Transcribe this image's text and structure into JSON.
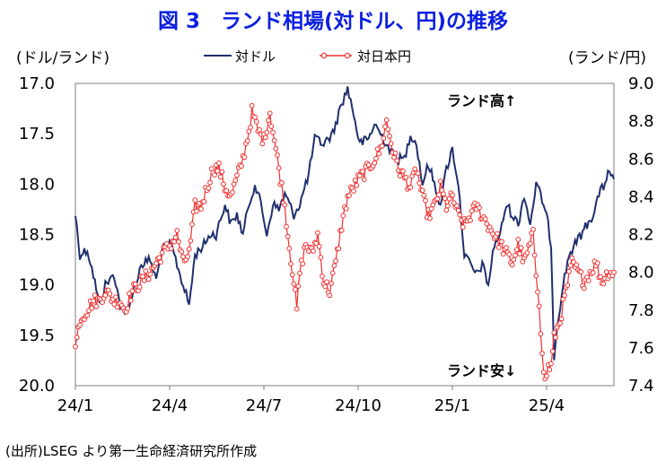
{
  "figure": {
    "title": "図 3　ランド相場(対ドル、円)の推移",
    "left_unit": "(ドル/ランド)",
    "right_unit": "(ランド/円)",
    "source": "(出所)LSEG より第一生命経済研究所作成",
    "annotation_up": "ランド高↑",
    "annotation_down": "ランド安↓"
  },
  "colors": {
    "usd": "#1f2f6e",
    "jpy": "#f03030"
  },
  "chart_data": {
    "type": "line",
    "title": "図 3　ランド相場(対ドル、円)の推移",
    "x_tick_labels": [
      "24/1",
      "24/4",
      "24/7",
      "24/10",
      "25/1",
      "25/4"
    ],
    "x_tick_index": [
      0,
      63,
      126,
      189,
      252,
      315
    ],
    "n_points": 310,
    "left_axis": {
      "label": "(ドル/ランド)",
      "ylim": [
        17.0,
        20.0
      ],
      "inverted": true,
      "ticks": [
        "17.0",
        "17.5",
        "18.0",
        "18.5",
        "19.0",
        "19.5",
        "20.0"
      ]
    },
    "right_axis": {
      "label": "(ランド/円)",
      "ylim": [
        7.4,
        9.0
      ],
      "ticks": [
        "9.0",
        "8.8",
        "8.6",
        "8.4",
        "8.2",
        "8.0",
        "7.8",
        "7.6",
        "7.4"
      ]
    },
    "legend": {
      "position": "top-center"
    },
    "series": [
      {
        "name": "対ドル",
        "axis": "left",
        "marker": "none",
        "anchors": [
          [
            0,
            18.3
          ],
          [
            3,
            18.7
          ],
          [
            8,
            18.65
          ],
          [
            12,
            18.9
          ],
          [
            16,
            19.2
          ],
          [
            20,
            19.0
          ],
          [
            26,
            18.9
          ],
          [
            30,
            19.2
          ],
          [
            33,
            19.3
          ],
          [
            38,
            19.1
          ],
          [
            44,
            18.8
          ],
          [
            50,
            18.75
          ],
          [
            54,
            18.95
          ],
          [
            58,
            18.65
          ],
          [
            64,
            18.6
          ],
          [
            70,
            18.9
          ],
          [
            76,
            19.2
          ],
          [
            80,
            18.7
          ],
          [
            86,
            18.6
          ],
          [
            90,
            18.5
          ],
          [
            94,
            18.5
          ],
          [
            100,
            18.2
          ],
          [
            104,
            18.4
          ],
          [
            108,
            18.3
          ],
          [
            112,
            18.5
          ],
          [
            116,
            18.2
          ],
          [
            120,
            18.0
          ],
          [
            124,
            18.2
          ],
          [
            128,
            18.5
          ],
          [
            132,
            18.2
          ],
          [
            136,
            18.25
          ],
          [
            140,
            18.1
          ],
          [
            146,
            18.3
          ],
          [
            150,
            18.2
          ],
          [
            156,
            17.9
          ],
          [
            160,
            17.55
          ],
          [
            166,
            17.6
          ],
          [
            172,
            17.5
          ],
          [
            178,
            17.2
          ],
          [
            182,
            17.05
          ],
          [
            186,
            17.3
          ],
          [
            190,
            17.6
          ],
          [
            196,
            17.55
          ],
          [
            200,
            17.4
          ],
          [
            206,
            17.55
          ],
          [
            212,
            17.7
          ],
          [
            216,
            17.75
          ],
          [
            220,
            17.75
          ],
          [
            224,
            17.5
          ],
          [
            228,
            17.6
          ],
          [
            232,
            18.0
          ],
          [
            236,
            17.8
          ],
          [
            240,
            18.0
          ],
          [
            244,
            18.2
          ],
          [
            248,
            17.85
          ],
          [
            252,
            17.65
          ],
          [
            256,
            18.0
          ],
          [
            260,
            18.7
          ],
          [
            264,
            18.8
          ],
          [
            268,
            18.9
          ],
          [
            272,
            18.8
          ],
          [
            276,
            19.0
          ],
          [
            280,
            18.6
          ],
          [
            284,
            18.5
          ],
          [
            288,
            18.2
          ],
          [
            292,
            18.3
          ],
          [
            296,
            18.4
          ],
          [
            300,
            18.1
          ],
          [
            304,
            18.4
          ],
          [
            308,
            18.0
          ],
          [
            312,
            18.15
          ],
          [
            316,
            18.4
          ],
          [
            318,
            18.6
          ],
          [
            320,
            19.7
          ],
          [
            322,
            19.4
          ],
          [
            326,
            19.0
          ],
          [
            330,
            18.7
          ],
          [
            334,
            18.6
          ],
          [
            338,
            18.5
          ],
          [
            342,
            18.4
          ],
          [
            346,
            18.3
          ],
          [
            350,
            18.1
          ],
          [
            354,
            18.0
          ],
          [
            356,
            17.85
          ],
          [
            358,
            17.95
          ],
          [
            360,
            17.95
          ]
        ],
        "noise": 0.05
      },
      {
        "name": "対日本円",
        "axis": "right",
        "marker": "circle-open",
        "anchors": [
          [
            0,
            7.6
          ],
          [
            3,
            7.75
          ],
          [
            8,
            7.8
          ],
          [
            12,
            7.85
          ],
          [
            16,
            7.85
          ],
          [
            20,
            7.9
          ],
          [
            26,
            7.85
          ],
          [
            30,
            7.85
          ],
          [
            33,
            7.8
          ],
          [
            38,
            7.9
          ],
          [
            44,
            7.95
          ],
          [
            50,
            8.0
          ],
          [
            54,
            8.05
          ],
          [
            58,
            8.1
          ],
          [
            64,
            8.15
          ],
          [
            68,
            8.2
          ],
          [
            72,
            8.05
          ],
          [
            76,
            8.1
          ],
          [
            80,
            8.35
          ],
          [
            84,
            8.35
          ],
          [
            88,
            8.45
          ],
          [
            92,
            8.55
          ],
          [
            96,
            8.55
          ],
          [
            100,
            8.45
          ],
          [
            104,
            8.4
          ],
          [
            108,
            8.5
          ],
          [
            112,
            8.6
          ],
          [
            116,
            8.75
          ],
          [
            118,
            8.85
          ],
          [
            122,
            8.75
          ],
          [
            126,
            8.7
          ],
          [
            130,
            8.85
          ],
          [
            134,
            8.65
          ],
          [
            138,
            8.45
          ],
          [
            140,
            8.35
          ],
          [
            142,
            8.2
          ],
          [
            146,
            7.95
          ],
          [
            148,
            7.8
          ],
          [
            150,
            8.0
          ],
          [
            154,
            8.15
          ],
          [
            158,
            8.1
          ],
          [
            162,
            8.2
          ],
          [
            166,
            7.95
          ],
          [
            170,
            7.9
          ],
          [
            174,
            8.05
          ],
          [
            178,
            8.25
          ],
          [
            182,
            8.4
          ],
          [
            186,
            8.45
          ],
          [
            190,
            8.5
          ],
          [
            196,
            8.55
          ],
          [
            200,
            8.6
          ],
          [
            204,
            8.65
          ],
          [
            208,
            8.8
          ],
          [
            212,
            8.65
          ],
          [
            216,
            8.55
          ],
          [
            220,
            8.5
          ],
          [
            224,
            8.45
          ],
          [
            228,
            8.55
          ],
          [
            232,
            8.4
          ],
          [
            236,
            8.3
          ],
          [
            240,
            8.35
          ],
          [
            244,
            8.45
          ],
          [
            248,
            8.35
          ],
          [
            252,
            8.4
          ],
          [
            256,
            8.3
          ],
          [
            260,
            8.25
          ],
          [
            264,
            8.3
          ],
          [
            268,
            8.35
          ],
          [
            272,
            8.3
          ],
          [
            276,
            8.25
          ],
          [
            280,
            8.2
          ],
          [
            284,
            8.15
          ],
          [
            288,
            8.1
          ],
          [
            292,
            8.05
          ],
          [
            296,
            8.15
          ],
          [
            300,
            8.05
          ],
          [
            304,
            8.15
          ],
          [
            306,
            8.2
          ],
          [
            308,
            8.0
          ],
          [
            310,
            7.85
          ],
          [
            312,
            7.55
          ],
          [
            314,
            7.42
          ],
          [
            316,
            7.5
          ],
          [
            318,
            7.5
          ],
          [
            320,
            7.65
          ],
          [
            324,
            7.75
          ],
          [
            328,
            7.9
          ],
          [
            332,
            8.05
          ],
          [
            336,
            8.0
          ],
          [
            340,
            7.95
          ],
          [
            344,
            8.0
          ],
          [
            348,
            8.05
          ],
          [
            352,
            7.95
          ],
          [
            356,
            8.0
          ],
          [
            360,
            8.0
          ]
        ],
        "noise": 0.035
      }
    ]
  }
}
